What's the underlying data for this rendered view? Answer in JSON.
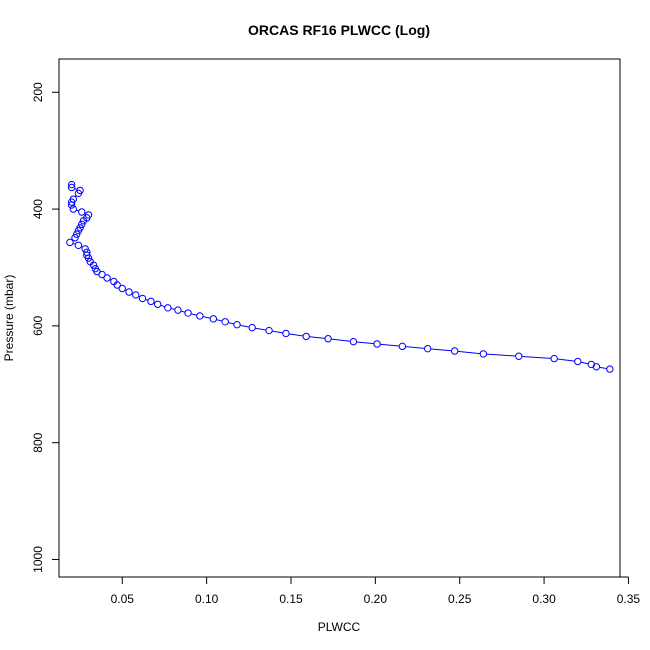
{
  "chart_data": {
    "type": "line",
    "title": "ORCAS RF16 PLWCC (Log)",
    "xlabel": "PLWCC",
    "ylabel": "Pressure (mbar)",
    "xlim": [
      0.0125,
      0.345
    ],
    "ylim": [
      1030,
      143
    ],
    "y_reversed": true,
    "x_ticks": [
      0.05,
      0.1,
      0.15,
      0.2,
      0.25,
      0.3,
      0.35
    ],
    "x_tick_labels": [
      "0.05",
      "0.10",
      "0.15",
      "0.20",
      "0.25",
      "0.30",
      "0.35"
    ],
    "y_ticks": [
      200,
      400,
      600,
      800,
      1000
    ],
    "y_tick_labels": [
      "200",
      "400",
      "600",
      "800",
      "1000"
    ],
    "grid": false,
    "series": [
      {
        "color": "#0000ff",
        "marker": "open-circle",
        "line_style": "solid",
        "points": [
          [
            0.02,
            358
          ],
          [
            0.02,
            363
          ],
          [
            0.025,
            368
          ],
          [
            0.024,
            373
          ],
          [
            0.021,
            383
          ],
          [
            0.02,
            388
          ],
          [
            0.02,
            393
          ],
          [
            0.021,
            400
          ],
          [
            0.026,
            405
          ],
          [
            0.03,
            410
          ],
          [
            0.029,
            415
          ],
          [
            0.027,
            420
          ],
          [
            0.026,
            426
          ],
          [
            0.025,
            432
          ],
          [
            0.024,
            437
          ],
          [
            0.023,
            443
          ],
          [
            0.022,
            449
          ],
          [
            0.019,
            457
          ],
          [
            0.024,
            462
          ],
          [
            0.028,
            468
          ],
          [
            0.029,
            474
          ],
          [
            0.029,
            479
          ],
          [
            0.03,
            484
          ],
          [
            0.031,
            490
          ],
          [
            0.033,
            496
          ],
          [
            0.034,
            502
          ],
          [
            0.035,
            507
          ],
          [
            0.038,
            512
          ],
          [
            0.041,
            518
          ],
          [
            0.045,
            524
          ],
          [
            0.047,
            530
          ],
          [
            0.05,
            536
          ],
          [
            0.054,
            542
          ],
          [
            0.058,
            547
          ],
          [
            0.062,
            553
          ],
          [
            0.067,
            558
          ],
          [
            0.071,
            563
          ],
          [
            0.077,
            569
          ],
          [
            0.083,
            573
          ],
          [
            0.089,
            578
          ],
          [
            0.096,
            583
          ],
          [
            0.104,
            588
          ],
          [
            0.111,
            593
          ],
          [
            0.118,
            598
          ],
          [
            0.127,
            603
          ],
          [
            0.137,
            608
          ],
          [
            0.147,
            613
          ],
          [
            0.159,
            618
          ],
          [
            0.172,
            622
          ],
          [
            0.187,
            627
          ],
          [
            0.201,
            631
          ],
          [
            0.216,
            635
          ],
          [
            0.231,
            639
          ],
          [
            0.247,
            643
          ],
          [
            0.264,
            648
          ],
          [
            0.285,
            652
          ],
          [
            0.306,
            656
          ],
          [
            0.32,
            661
          ],
          [
            0.328,
            666
          ],
          [
            0.331,
            670
          ],
          [
            0.339,
            674
          ]
        ]
      }
    ]
  }
}
